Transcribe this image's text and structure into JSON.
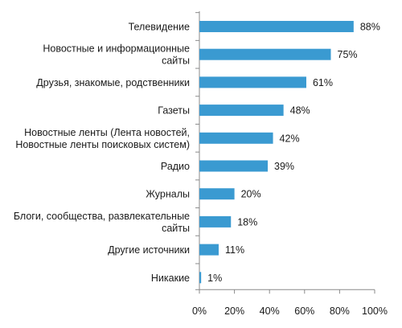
{
  "chart_data": {
    "type": "bar",
    "orientation": "horizontal",
    "title": "",
    "xlabel": "",
    "ylabel": "",
    "categories": [
      [
        "Телевидение"
      ],
      [
        "Новостные и информационные",
        "сайты"
      ],
      [
        "Друзья, знакомые, родственники"
      ],
      [
        "Газеты"
      ],
      [
        "Новостные ленты (Лента новостей,",
        "Новостные ленты поисковых систем)"
      ],
      [
        "Радио"
      ],
      [
        "Журналы"
      ],
      [
        "Блоги, сообщества, развлекательные",
        "сайты"
      ],
      [
        "Другие источники"
      ],
      [
        "Никакие"
      ]
    ],
    "values": [
      88,
      75,
      61,
      48,
      42,
      39,
      20,
      18,
      11,
      1
    ],
    "value_labels": [
      "88%",
      "75%",
      "61%",
      "48%",
      "42%",
      "39%",
      "20%",
      "18%",
      "11%",
      "1%"
    ],
    "xlim": [
      0,
      100
    ],
    "x_ticks": [
      0,
      20,
      40,
      60,
      80,
      100
    ],
    "x_tick_labels": [
      "0%",
      "20%",
      "40%",
      "60%",
      "80%",
      "100%"
    ],
    "grid": false,
    "legend": "none",
    "bar_color": "#3a9ad1",
    "axis_color": "#8a8a8a",
    "text_color": "#1a1a1a"
  }
}
